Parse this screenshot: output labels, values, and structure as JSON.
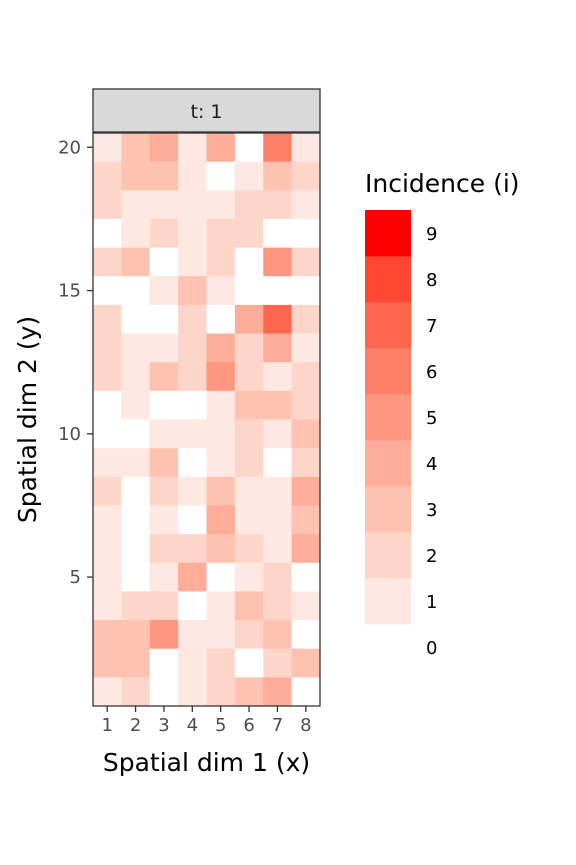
{
  "chart_data": {
    "type": "heatmap",
    "facet_label": "t: 1",
    "xlabel": "Spatial dim 1 (x)",
    "ylabel": "Spatial dim 2 (y)",
    "x_ticks": [
      1,
      2,
      3,
      4,
      5,
      6,
      7,
      8
    ],
    "y_ticks": [
      5,
      10,
      15,
      20
    ],
    "xlim": [
      0.5,
      8.5
    ],
    "ylim": [
      0.5,
      20.5
    ],
    "grid": false,
    "legend": {
      "title": "Incidence (i)",
      "position": "right",
      "levels": [
        0,
        1,
        2,
        3,
        4,
        5,
        6,
        7,
        8,
        9
      ],
      "colors": [
        "#ffffff",
        "#fee8e1",
        "#fed6c9",
        "#ffc2b0",
        "#ffad98",
        "#ff9780",
        "#ff7f66",
        "#ff664d",
        "#ff4630",
        "#ff0000"
      ]
    },
    "rows_top_to_bottom": [
      [
        1,
        3,
        4,
        1,
        4,
        0,
        6,
        1
      ],
      [
        2,
        3,
        3,
        1,
        0,
        1,
        3,
        2
      ],
      [
        2,
        1,
        1,
        1,
        1,
        2,
        2,
        1
      ],
      [
        0,
        1,
        2,
        1,
        2,
        2,
        0,
        0
      ],
      [
        2,
        3,
        0,
        1,
        2,
        0,
        5,
        2
      ],
      [
        0,
        0,
        1,
        3,
        1,
        0,
        0,
        0
      ],
      [
        2,
        0,
        0,
        2,
        0,
        4,
        7,
        2
      ],
      [
        2,
        1,
        1,
        2,
        4,
        2,
        4,
        1
      ],
      [
        2,
        1,
        3,
        2,
        5,
        2,
        1,
        2
      ],
      [
        0,
        1,
        0,
        0,
        1,
        3,
        3,
        2
      ],
      [
        0,
        0,
        1,
        1,
        1,
        2,
        1,
        3
      ],
      [
        1,
        1,
        3,
        0,
        1,
        2,
        0,
        2
      ],
      [
        2,
        0,
        2,
        1,
        3,
        1,
        1,
        4
      ],
      [
        1,
        0,
        1,
        0,
        4,
        1,
        1,
        3
      ],
      [
        1,
        0,
        2,
        2,
        3,
        2,
        1,
        4
      ],
      [
        1,
        0,
        1,
        4,
        0,
        1,
        2,
        0
      ],
      [
        1,
        2,
        2,
        0,
        1,
        3,
        2,
        1
      ],
      [
        3,
        3,
        5,
        1,
        1,
        2,
        3,
        0
      ],
      [
        3,
        3,
        0,
        1,
        2,
        0,
        2,
        3
      ],
      [
        1,
        2,
        0,
        1,
        2,
        3,
        4,
        0
      ]
    ]
  }
}
